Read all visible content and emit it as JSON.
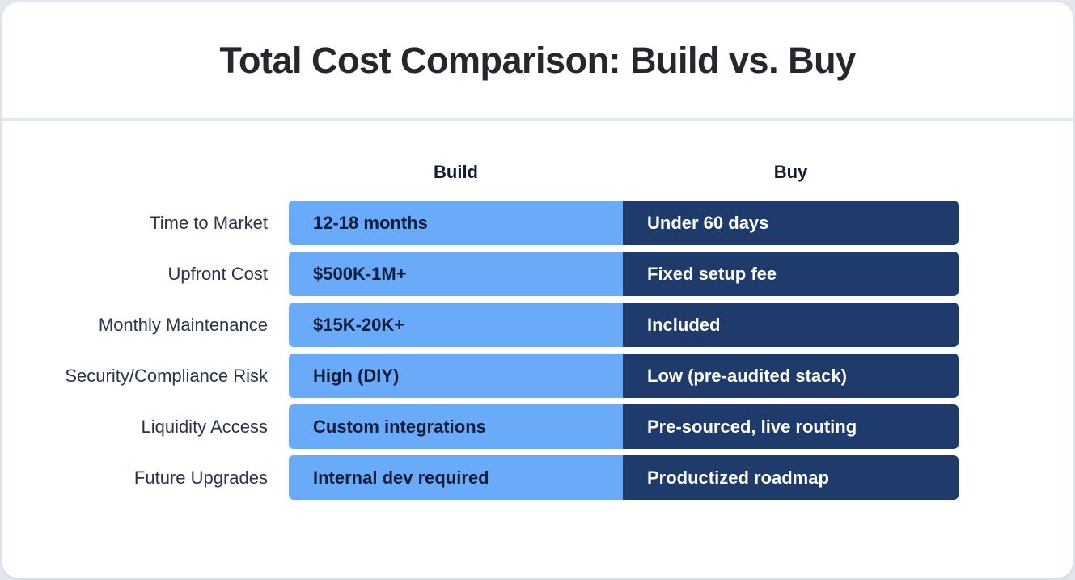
{
  "chart_data": {
    "type": "table",
    "title": "Total Cost Comparison: Build vs. Buy",
    "column_headers": [
      "Build",
      "Buy"
    ],
    "row_labels": [
      "Time to Market",
      "Upfront Cost",
      "Monthly Maintenance",
      "Security/Compliance Risk",
      "Liquidity Access",
      "Future Upgrades"
    ],
    "build_values": [
      "12-18 months",
      "$500K-1M+",
      "$15K-20K+",
      "High (DIY)",
      "Custom integrations",
      "Internal dev required"
    ],
    "buy_values": [
      "Under 60 days",
      "Fixed setup fee",
      "Included",
      "Low (pre-audited stack)",
      "Pre-sourced, live routing",
      "Productized roadmap"
    ],
    "legend_position": "none",
    "grid": false,
    "colors": {
      "page_background": "#E2E7EF",
      "card_background": "#FFFFFF",
      "title_text": "#23272E",
      "row_label_text": "#283349",
      "column_header_text": "#111B33",
      "build_cell_background": "#6AABF9",
      "build_cell_text": "#0F1D3A",
      "buy_cell_background": "#1F3B6C",
      "buy_cell_text": "#FFFFFF"
    }
  }
}
